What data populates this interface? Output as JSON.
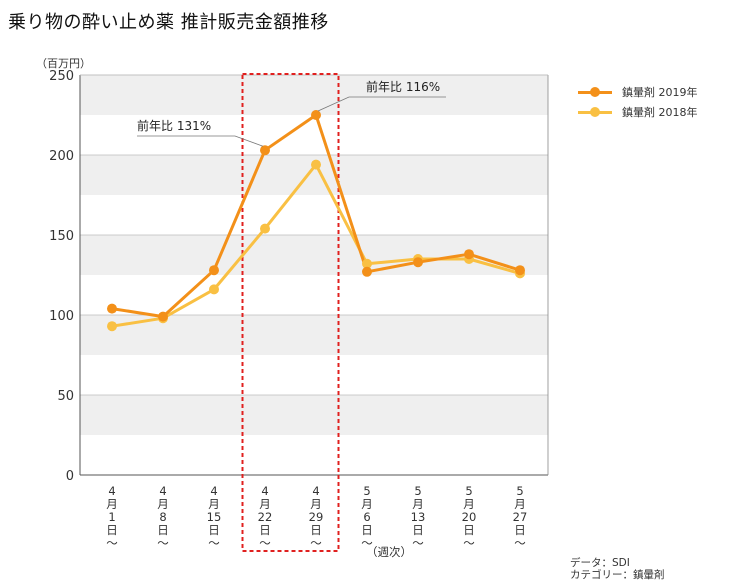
{
  "title": "乗り物の酔い止め薬 推計販売金額推移",
  "unit_label": "（百万円）",
  "x_unit_label": "（週次）",
  "source": {
    "data": "データ：SDI",
    "category": "カテゴリー：鎮暈剤"
  },
  "colors": {
    "2019": "#f39019",
    "2018": "#f9c043",
    "highlight_box": "#e0201f",
    "band": "#efefef"
  },
  "legend": [
    {
      "label": "鎮暈剤 2019年",
      "color": "#f39019"
    },
    {
      "label": "鎮暈剤 2018年",
      "color": "#f9c043"
    }
  ],
  "annotations": [
    {
      "text": "前年比 131%",
      "category_index": 3
    },
    {
      "text": "前年比 116%",
      "category_index": 4
    }
  ],
  "chart_data": {
    "type": "line",
    "title": "乗り物の酔い止め薬 推計販売金額推移",
    "xlabel": "（週次）",
    "ylabel": "（百万円）",
    "ylim": [
      0,
      250
    ],
    "yticks": [
      0,
      50,
      100,
      150,
      200,
      250
    ],
    "categories": [
      "4月1日～",
      "4月8日～",
      "4月15日～",
      "4月22日～",
      "4月29日～",
      "5月6日～",
      "5月13日～",
      "5月20日～",
      "5月27日～"
    ],
    "category_labels": [
      [
        "4",
        "月",
        "1",
        "日",
        "～"
      ],
      [
        "4",
        "月",
        "8",
        "日",
        "～"
      ],
      [
        "4",
        "月",
        "15",
        "日",
        "～"
      ],
      [
        "4",
        "月",
        "22",
        "日",
        "～"
      ],
      [
        "4",
        "月",
        "29",
        "日",
        "～"
      ],
      [
        "5",
        "月",
        "6",
        "日",
        "～"
      ],
      [
        "5",
        "月",
        "13",
        "日",
        "～"
      ],
      [
        "5",
        "月",
        "20",
        "日",
        "～"
      ],
      [
        "5",
        "月",
        "27",
        "日",
        "～"
      ]
    ],
    "series": [
      {
        "name": "鎮暈剤 2019年",
        "values": [
          104,
          99,
          128,
          203,
          225,
          127,
          133,
          138,
          128
        ]
      },
      {
        "name": "鎮暈剤 2018年",
        "values": [
          93,
          98,
          116,
          154,
          194,
          132,
          135,
          135,
          126
        ]
      }
    ],
    "highlight_categories": [
      3,
      4
    ],
    "grid": true,
    "legend_position": "top-right"
  }
}
